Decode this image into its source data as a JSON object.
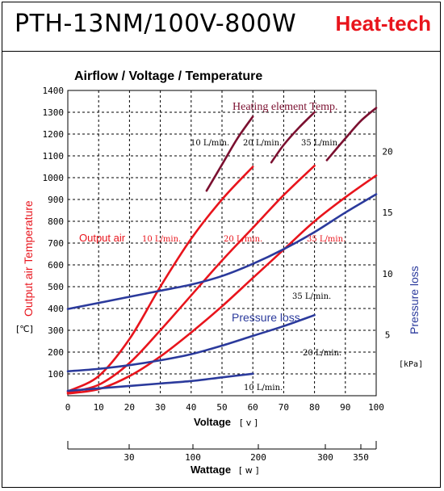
{
  "header": {
    "model": "PTH-13NM/100V-800W",
    "brand": "Heat-tech"
  },
  "chart_data": {
    "type": "line",
    "title": "Airflow / Voltage / Temperature",
    "xlabel": "Voltage",
    "xunit": "[ v ]",
    "x_range": [
      0,
      100
    ],
    "x_ticks": [
      0,
      10,
      20,
      30,
      40,
      50,
      60,
      70,
      80,
      90,
      100
    ],
    "y_left_label": "Output air Temperature",
    "y_left_unit": "[℃]",
    "y_left_range": [
      0,
      1400
    ],
    "y_left_ticks": [
      100,
      200,
      300,
      400,
      500,
      600,
      700,
      800,
      900,
      1000,
      1100,
      1200,
      1300,
      1400
    ],
    "y_right_label": "Pressure loss",
    "y_right_unit": "[kPa]",
    "y_right_range": [
      0,
      25
    ],
    "y_right_ticks": [
      5,
      10,
      15,
      20
    ],
    "wattage_axis": {
      "label": "Wattage",
      "unit": "[ w ]",
      "ticks": [
        30,
        100,
        200,
        300,
        350
      ]
    },
    "grid": true,
    "series": [
      {
        "group": "Heating element Temp.",
        "name": "10 L/min.",
        "axis": "left",
        "color": "#7b1030",
        "points": [
          [
            45,
            940
          ],
          [
            50,
            1060
          ],
          [
            55,
            1180
          ],
          [
            60,
            1280
          ]
        ]
      },
      {
        "group": "Heating element Temp.",
        "name": "20 L/min.",
        "axis": "left",
        "color": "#7b1030",
        "points": [
          [
            66,
            1070
          ],
          [
            70,
            1150
          ],
          [
            75,
            1230
          ],
          [
            80,
            1300
          ]
        ]
      },
      {
        "group": "Heating element Temp.",
        "name": "35 L/min.",
        "axis": "left",
        "color": "#7b1030",
        "points": [
          [
            84,
            1080
          ],
          [
            90,
            1180
          ],
          [
            95,
            1260
          ],
          [
            100,
            1320
          ]
        ]
      },
      {
        "group": "Output air",
        "name": "10 L/min.",
        "axis": "left",
        "color": "#e8141c",
        "points": [
          [
            0,
            20
          ],
          [
            10,
            90
          ],
          [
            20,
            260
          ],
          [
            30,
            500
          ],
          [
            40,
            720
          ],
          [
            50,
            900
          ],
          [
            60,
            1050
          ]
        ]
      },
      {
        "group": "Output air",
        "name": "20 L/min.",
        "axis": "left",
        "color": "#e8141c",
        "points": [
          [
            0,
            15
          ],
          [
            10,
            50
          ],
          [
            20,
            150
          ],
          [
            30,
            300
          ],
          [
            40,
            460
          ],
          [
            50,
            620
          ],
          [
            60,
            770
          ],
          [
            70,
            920
          ],
          [
            80,
            1055
          ]
        ]
      },
      {
        "group": "Output air",
        "name": "35 L/min.",
        "axis": "left",
        "color": "#e8141c",
        "points": [
          [
            0,
            10
          ],
          [
            10,
            30
          ],
          [
            20,
            90
          ],
          [
            30,
            180
          ],
          [
            40,
            290
          ],
          [
            50,
            410
          ],
          [
            60,
            540
          ],
          [
            70,
            670
          ],
          [
            80,
            800
          ],
          [
            90,
            910
          ],
          [
            100,
            1010
          ]
        ]
      },
      {
        "group": "Pressure loss",
        "name": "35 L/min.",
        "axis": "right",
        "color": "#2b3a9c",
        "points": [
          [
            0,
            7.1
          ],
          [
            10,
            7.6
          ],
          [
            20,
            8.1
          ],
          [
            30,
            8.6
          ],
          [
            40,
            9.1
          ],
          [
            50,
            9.8
          ],
          [
            60,
            10.8
          ],
          [
            70,
            12.0
          ],
          [
            80,
            13.4
          ],
          [
            90,
            15.0
          ],
          [
            100,
            16.5
          ]
        ]
      },
      {
        "group": "Pressure loss",
        "name": "20 L/min.",
        "axis": "right",
        "color": "#2b3a9c",
        "points": [
          [
            0,
            2.0
          ],
          [
            10,
            2.2
          ],
          [
            20,
            2.5
          ],
          [
            30,
            2.9
          ],
          [
            40,
            3.4
          ],
          [
            50,
            4.1
          ],
          [
            60,
            4.9
          ],
          [
            70,
            5.7
          ],
          [
            80,
            6.6
          ]
        ]
      },
      {
        "group": "Pressure loss",
        "name": "10 L/min.",
        "axis": "right",
        "color": "#2b3a9c",
        "points": [
          [
            0,
            0.4
          ],
          [
            10,
            0.6
          ],
          [
            20,
            0.8
          ],
          [
            30,
            1.0
          ],
          [
            40,
            1.2
          ],
          [
            50,
            1.5
          ],
          [
            60,
            1.8
          ]
        ]
      }
    ],
    "annotations": {
      "heating_title": "Heating element Temp.",
      "heating_10": "10 L/min.",
      "heating_20": "20 L/min.",
      "heating_35": "35 L/min.",
      "output_air": "Output air",
      "output_10": "10 L/min.",
      "output_20": "20  L/min.",
      "output_35": "35 L/min.",
      "pressure_title": "Pressure loss",
      "pressure_35": "35 L/min.",
      "pressure_20": "20 L/min.",
      "pressure_10": "10 L/min."
    }
  }
}
